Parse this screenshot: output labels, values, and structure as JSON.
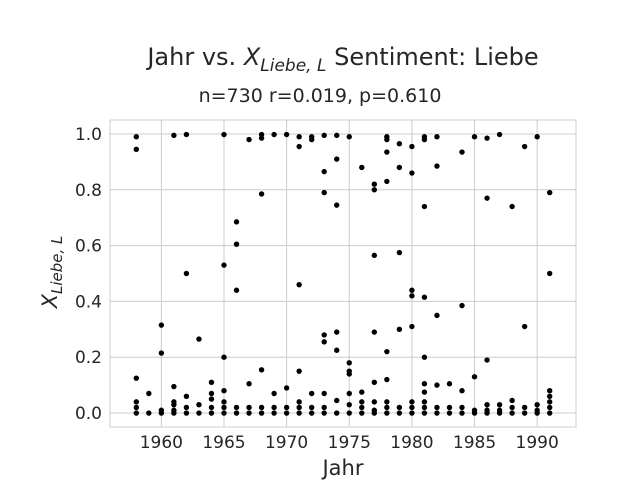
{
  "chart_data": {
    "type": "scatter",
    "title_prefix": "Jahr vs. ",
    "title_var": "X",
    "title_var_sub": "Liebe, L",
    "title_suffix": " Sentiment: Liebe",
    "subtitle": "n=730 r=0.019, p=0.610",
    "xlabel": "Jahr",
    "ylabel_var": "X",
    "ylabel_sub": "Liebe, L",
    "xlim": [
      1955.9,
      1993.1
    ],
    "ylim": [
      -0.05,
      1.05
    ],
    "xticks": [
      1960,
      1965,
      1970,
      1975,
      1980,
      1985,
      1990
    ],
    "yticks": [
      "0.0",
      "0.2",
      "0.4",
      "0.6",
      "0.8",
      "1.0"
    ],
    "grid": true,
    "point_color": "#000000",
    "points": [
      [
        1958,
        0.99
      ],
      [
        1958,
        0.945
      ],
      [
        1958,
        0.125
      ],
      [
        1958,
        0.04
      ],
      [
        1958,
        0.02
      ],
      [
        1958,
        0.0
      ],
      [
        1959,
        0.07
      ],
      [
        1959,
        0.0
      ],
      [
        1960,
        0.315
      ],
      [
        1960,
        0.215
      ],
      [
        1960,
        0.01
      ],
      [
        1960,
        0.0
      ],
      [
        1961,
        0.995
      ],
      [
        1961,
        0.095
      ],
      [
        1961,
        0.04
      ],
      [
        1961,
        0.03
      ],
      [
        1961,
        0.01
      ],
      [
        1961,
        0.0
      ],
      [
        1962,
        0.998
      ],
      [
        1962,
        0.5
      ],
      [
        1962,
        0.06
      ],
      [
        1962,
        0.02
      ],
      [
        1962,
        0.0
      ],
      [
        1963,
        0.265
      ],
      [
        1963,
        0.03
      ],
      [
        1963,
        0.0
      ],
      [
        1964,
        0.11
      ],
      [
        1964,
        0.07
      ],
      [
        1964,
        0.05
      ],
      [
        1964,
        0.02
      ],
      [
        1964,
        0.0
      ],
      [
        1965,
        0.998
      ],
      [
        1965,
        0.53
      ],
      [
        1965,
        0.2
      ],
      [
        1965,
        0.08
      ],
      [
        1965,
        0.04
      ],
      [
        1965,
        0.02
      ],
      [
        1965,
        0.0
      ],
      [
        1966,
        0.685
      ],
      [
        1966,
        0.605
      ],
      [
        1966,
        0.44
      ],
      [
        1966,
        0.02
      ],
      [
        1966,
        0.0
      ],
      [
        1967,
        0.98
      ],
      [
        1967,
        0.105
      ],
      [
        1967,
        0.02
      ],
      [
        1967,
        0.0
      ],
      [
        1968,
        0.998
      ],
      [
        1968,
        0.985
      ],
      [
        1968,
        0.785
      ],
      [
        1968,
        0.155
      ],
      [
        1968,
        0.02
      ],
      [
        1968,
        0.0
      ],
      [
        1969,
        0.998
      ],
      [
        1969,
        0.07
      ],
      [
        1969,
        0.02
      ],
      [
        1969,
        0.0
      ],
      [
        1970,
        0.998
      ],
      [
        1970,
        0.09
      ],
      [
        1970,
        0.02
      ],
      [
        1970,
        0.0
      ],
      [
        1971,
        0.99
      ],
      [
        1971,
        0.955
      ],
      [
        1971,
        0.46
      ],
      [
        1971,
        0.15
      ],
      [
        1971,
        0.04
      ],
      [
        1971,
        0.02
      ],
      [
        1971,
        0.0
      ],
      [
        1972,
        0.99
      ],
      [
        1972,
        0.98
      ],
      [
        1972,
        0.07
      ],
      [
        1972,
        0.02
      ],
      [
        1972,
        0.0
      ],
      [
        1973,
        0.995
      ],
      [
        1973,
        0.865
      ],
      [
        1973,
        0.79
      ],
      [
        1973,
        0.28
      ],
      [
        1973,
        0.255
      ],
      [
        1973,
        0.07
      ],
      [
        1973,
        0.02
      ],
      [
        1973,
        0.0
      ],
      [
        1974,
        0.995
      ],
      [
        1974,
        0.91
      ],
      [
        1974,
        0.745
      ],
      [
        1974,
        0.29
      ],
      [
        1974,
        0.225
      ],
      [
        1974,
        0.045
      ],
      [
        1974,
        0.0
      ],
      [
        1975,
        0.99
      ],
      [
        1975,
        0.18
      ],
      [
        1975,
        0.15
      ],
      [
        1975,
        0.14
      ],
      [
        1975,
        0.07
      ],
      [
        1975,
        0.03
      ],
      [
        1975,
        0.0
      ],
      [
        1976,
        0.88
      ],
      [
        1976,
        0.075
      ],
      [
        1976,
        0.04
      ],
      [
        1976,
        0.02
      ],
      [
        1976,
        0.0
      ],
      [
        1977,
        0.82
      ],
      [
        1977,
        0.8
      ],
      [
        1977,
        0.565
      ],
      [
        1977,
        0.29
      ],
      [
        1977,
        0.11
      ],
      [
        1977,
        0.04
      ],
      [
        1977,
        0.01
      ],
      [
        1977,
        0.0
      ],
      [
        1978,
        0.99
      ],
      [
        1978,
        0.98
      ],
      [
        1978,
        0.935
      ],
      [
        1978,
        0.83
      ],
      [
        1978,
        0.22
      ],
      [
        1978,
        0.12
      ],
      [
        1978,
        0.04
      ],
      [
        1978,
        0.02
      ],
      [
        1978,
        0.0
      ],
      [
        1979,
        0.965
      ],
      [
        1979,
        0.88
      ],
      [
        1979,
        0.575
      ],
      [
        1979,
        0.3
      ],
      [
        1979,
        0.02
      ],
      [
        1979,
        0.0
      ],
      [
        1980,
        0.955
      ],
      [
        1980,
        0.86
      ],
      [
        1980,
        0.44
      ],
      [
        1980,
        0.42
      ],
      [
        1980,
        0.31
      ],
      [
        1980,
        0.04
      ],
      [
        1980,
        0.02
      ],
      [
        1980,
        0.0
      ],
      [
        1981,
        0.99
      ],
      [
        1981,
        0.98
      ],
      [
        1981,
        0.74
      ],
      [
        1981,
        0.415
      ],
      [
        1981,
        0.2
      ],
      [
        1981,
        0.105
      ],
      [
        1981,
        0.075
      ],
      [
        1981,
        0.04
      ],
      [
        1981,
        0.02
      ],
      [
        1981,
        0.0
      ],
      [
        1982,
        0.99
      ],
      [
        1982,
        0.885
      ],
      [
        1982,
        0.35
      ],
      [
        1982,
        0.1
      ],
      [
        1982,
        0.02
      ],
      [
        1982,
        0.0
      ],
      [
        1983,
        0.105
      ],
      [
        1983,
        0.02
      ],
      [
        1983,
        0.0
      ],
      [
        1984,
        0.935
      ],
      [
        1984,
        0.385
      ],
      [
        1984,
        0.08
      ],
      [
        1984,
        0.02
      ],
      [
        1984,
        0.0
      ],
      [
        1985,
        0.99
      ],
      [
        1985,
        0.13
      ],
      [
        1985,
        0.01
      ],
      [
        1985,
        0.0
      ],
      [
        1986,
        0.985
      ],
      [
        1986,
        0.77
      ],
      [
        1986,
        0.19
      ],
      [
        1986,
        0.03
      ],
      [
        1986,
        0.01
      ],
      [
        1986,
        0.0
      ],
      [
        1987,
        0.998
      ],
      [
        1987,
        0.03
      ],
      [
        1987,
        0.01
      ],
      [
        1987,
        0.0
      ],
      [
        1988,
        0.74
      ],
      [
        1988,
        0.045
      ],
      [
        1988,
        0.02
      ],
      [
        1988,
        0.0
      ],
      [
        1989,
        0.955
      ],
      [
        1989,
        0.31
      ],
      [
        1989,
        0.02
      ],
      [
        1989,
        0.0
      ],
      [
        1990,
        0.99
      ],
      [
        1990,
        0.03
      ],
      [
        1990,
        0.01
      ],
      [
        1990,
        0.0
      ],
      [
        1991,
        0.79
      ],
      [
        1991,
        0.5
      ],
      [
        1991,
        0.08
      ],
      [
        1991,
        0.06
      ],
      [
        1991,
        0.04
      ],
      [
        1991,
        0.02
      ],
      [
        1991,
        0.0
      ]
    ]
  }
}
